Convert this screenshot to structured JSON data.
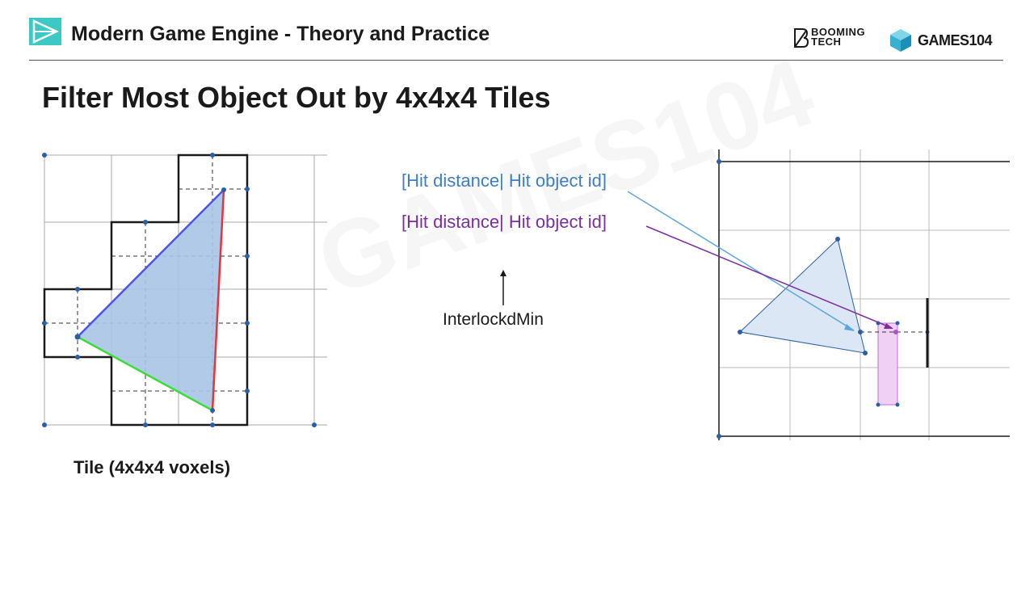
{
  "header": {
    "course_title": "Modern Game Engine - Theory and Practice",
    "brand_booming": "BOOMING TECH",
    "brand_games": "GAMES104"
  },
  "slide": {
    "title": "Filter Most Object Out by 4x4x4 Tiles",
    "tile_caption": "Tile (4x4x4 voxels)",
    "label_blue": "[Hit distance| Hit object id]",
    "label_purple": "[Hit distance| Hit object id]",
    "label_interlock": "InterlockdMin"
  },
  "colors": {
    "blue_label": "#3d7fc1",
    "purple_label": "#7a2fa0",
    "triangle_fill": "#a9c4e6",
    "edge_blue": "#4a55e8",
    "edge_red": "#e8333a",
    "edge_green": "#3ddc3d"
  }
}
